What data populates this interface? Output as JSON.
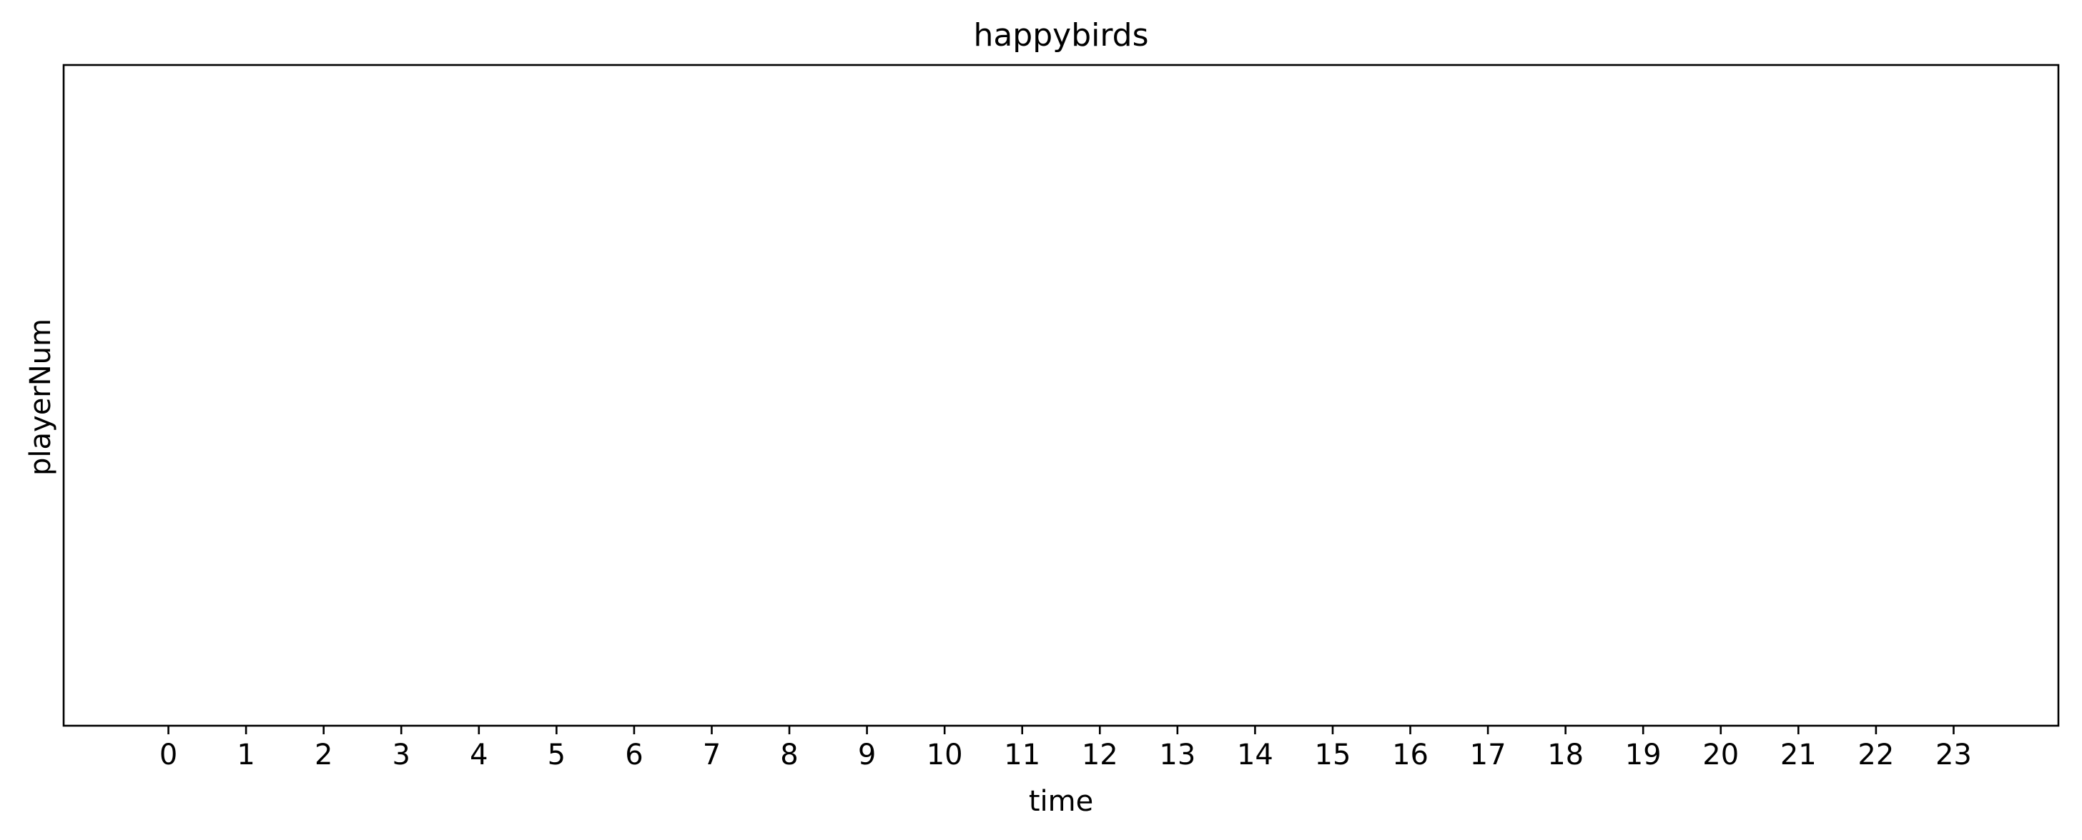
{
  "chart_data": {
    "type": "line",
    "title": "happybirds",
    "xlabel": "time",
    "ylabel": "playerNum",
    "x_ticks": [
      "0",
      "1",
      "2",
      "3",
      "4",
      "5",
      "6",
      "7",
      "8",
      "9",
      "10",
      "11",
      "12",
      "13",
      "14",
      "15",
      "16",
      "17",
      "18",
      "19",
      "20",
      "21",
      "22",
      "23"
    ],
    "xlim": [
      -1.35,
      24.35
    ],
    "y_ticks": [],
    "series": [],
    "grid": false,
    "legend": "none"
  }
}
